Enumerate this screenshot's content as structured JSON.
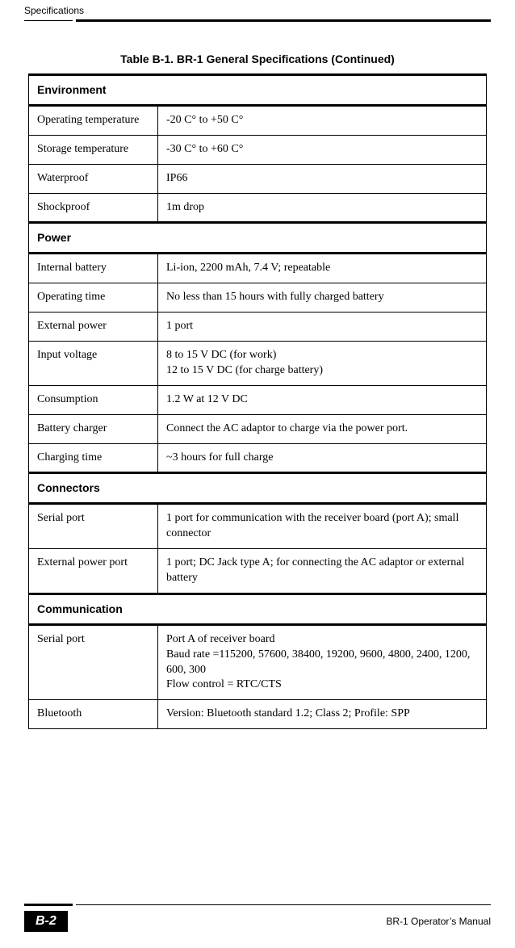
{
  "header": {
    "section_title": "Specifications"
  },
  "caption": "Table B-1. BR-1 General Specifications (Continued)",
  "sections": {
    "environment": {
      "heading": "Environment",
      "rows": {
        "op_temp_label": "Operating temperature",
        "op_temp_value": "-20 C° to +50 C°",
        "storage_label": "Storage temperature",
        "storage_value": "-30 C° to +60 C°",
        "waterproof_label": "Waterproof",
        "waterproof_value": "IP66",
        "shockproof_label": "Shockproof",
        "shockproof_value": "1m drop"
      }
    },
    "power": {
      "heading": "Power",
      "rows": {
        "battery_label": "Internal battery",
        "battery_value": "Li-ion, 2200 mAh, 7.4 V; repeatable",
        "optime_label": "Operating time",
        "optime_value": "No less than 15 hours with fully charged battery",
        "extpower_label": "External power",
        "extpower_value": "1 port",
        "voltage_label": "Input voltage",
        "voltage_value": "8 to 15 V DC (for work)\n12 to 15 V DC (for charge battery)",
        "consumption_label": "Consumption",
        "consumption_value": "1.2 W at 12 V DC",
        "charger_label": "Battery charger",
        "charger_value": "Connect the AC adaptor to charge via the power port.",
        "chargetime_label": "Charging time",
        "chargetime_value": "~3 hours for full charge"
      }
    },
    "connectors": {
      "heading": "Connectors",
      "rows": {
        "serial_label": "Serial port",
        "serial_value": "1 port for communication with the receiver board (port A); small connector",
        "extport_label": "External power port",
        "extport_value": "1 port; DC Jack type A; for connecting the AC adaptor or external battery"
      }
    },
    "communication": {
      "heading": "Communication",
      "rows": {
        "serial_label": "Serial port",
        "serial_value": "Port A of receiver board\nBaud rate =115200, 57600, 38400, 19200, 9600, 4800, 2400, 1200, 600, 300\nFlow control = RTC/CTS",
        "bt_label": "Bluetooth",
        "bt_value": "Version: Bluetooth standard 1.2; Class 2; Profile: SPP"
      }
    }
  },
  "footer": {
    "page_number": "B-2",
    "manual": "BR-1 Operator’s Manual"
  }
}
